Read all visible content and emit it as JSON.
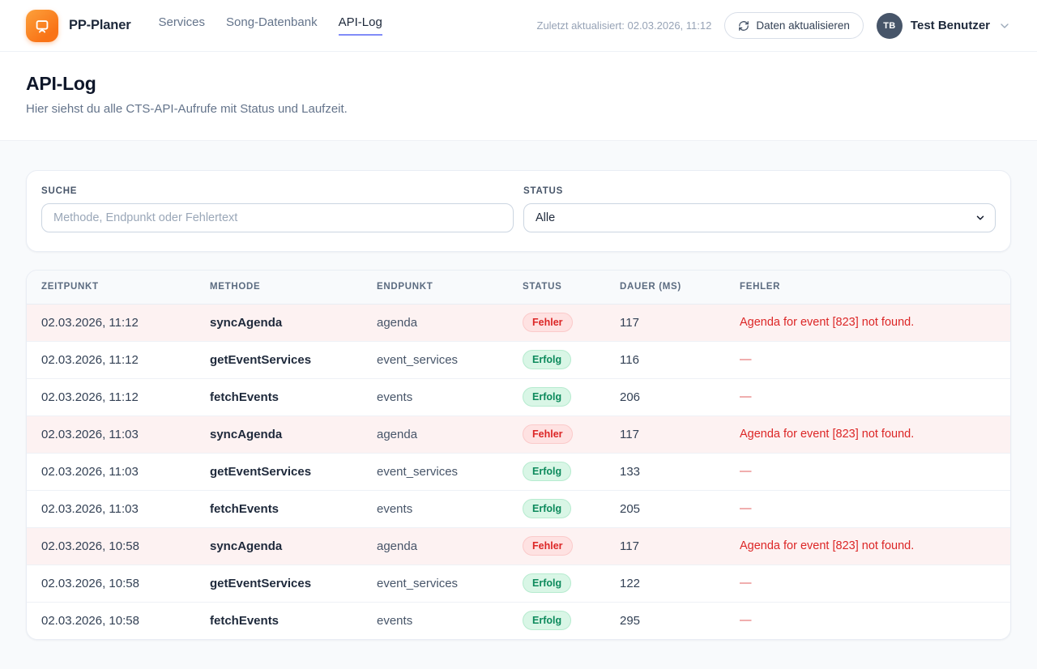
{
  "colors": {
    "brand_orange": "#f97316",
    "nav_active_underline": "#818cf8",
    "error_text": "#dc2626",
    "error_row_bg": "#fdf2f2",
    "error_badge_bg": "#fee2e2",
    "success_badge_bg": "#d9f6e6",
    "success_badge_text": "#0d8a5c",
    "avatar_bg": "#475569"
  },
  "topbar": {
    "brand": "PP-Planer",
    "nav": {
      "items": [
        {
          "label": "Services",
          "active": false
        },
        {
          "label": "Song-Datenbank",
          "active": false
        },
        {
          "label": "API-Log",
          "active": true
        }
      ]
    },
    "last_updated": "Zuletzt aktualisiert: 02.03.2026, 11:12",
    "refresh_button": "Daten aktualisieren",
    "user": {
      "initials": "TB",
      "name": "Test Benutzer"
    }
  },
  "page": {
    "title": "API-Log",
    "subtitle": "Hier siehst du alle CTS-API-Aufrufe mit Status und Laufzeit."
  },
  "filters": {
    "search": {
      "label": "SUCHE",
      "placeholder": "Methode, Endpunkt oder Fehlertext",
      "value": ""
    },
    "status": {
      "label": "STATUS",
      "selected": "Alle"
    }
  },
  "table": {
    "columns": [
      "ZEITPUNKT",
      "METHODE",
      "ENDPUNKT",
      "STATUS",
      "DAUER (MS)",
      "FEHLER"
    ],
    "rows": [
      {
        "timestamp": "02.03.2026, 11:12",
        "method": "syncAgenda",
        "endpoint": "agenda",
        "status": "Fehler",
        "status_type": "error",
        "duration": "117",
        "error": "Agenda for event [823] not found."
      },
      {
        "timestamp": "02.03.2026, 11:12",
        "method": "getEventServices",
        "endpoint": "event_services",
        "status": "Erfolg",
        "status_type": "success",
        "duration": "116",
        "error": "—"
      },
      {
        "timestamp": "02.03.2026, 11:12",
        "method": "fetchEvents",
        "endpoint": "events",
        "status": "Erfolg",
        "status_type": "success",
        "duration": "206",
        "error": "—"
      },
      {
        "timestamp": "02.03.2026, 11:03",
        "method": "syncAgenda",
        "endpoint": "agenda",
        "status": "Fehler",
        "status_type": "error",
        "duration": "117",
        "error": "Agenda for event [823] not found."
      },
      {
        "timestamp": "02.03.2026, 11:03",
        "method": "getEventServices",
        "endpoint": "event_services",
        "status": "Erfolg",
        "status_type": "success",
        "duration": "133",
        "error": "—"
      },
      {
        "timestamp": "02.03.2026, 11:03",
        "method": "fetchEvents",
        "endpoint": "events",
        "status": "Erfolg",
        "status_type": "success",
        "duration": "205",
        "error": "—"
      },
      {
        "timestamp": "02.03.2026, 10:58",
        "method": "syncAgenda",
        "endpoint": "agenda",
        "status": "Fehler",
        "status_type": "error",
        "duration": "117",
        "error": "Agenda for event [823] not found."
      },
      {
        "timestamp": "02.03.2026, 10:58",
        "method": "getEventServices",
        "endpoint": "event_services",
        "status": "Erfolg",
        "status_type": "success",
        "duration": "122",
        "error": "—"
      },
      {
        "timestamp": "02.03.2026, 10:58",
        "method": "fetchEvents",
        "endpoint": "events",
        "status": "Erfolg",
        "status_type": "success",
        "duration": "295",
        "error": "—"
      }
    ]
  }
}
